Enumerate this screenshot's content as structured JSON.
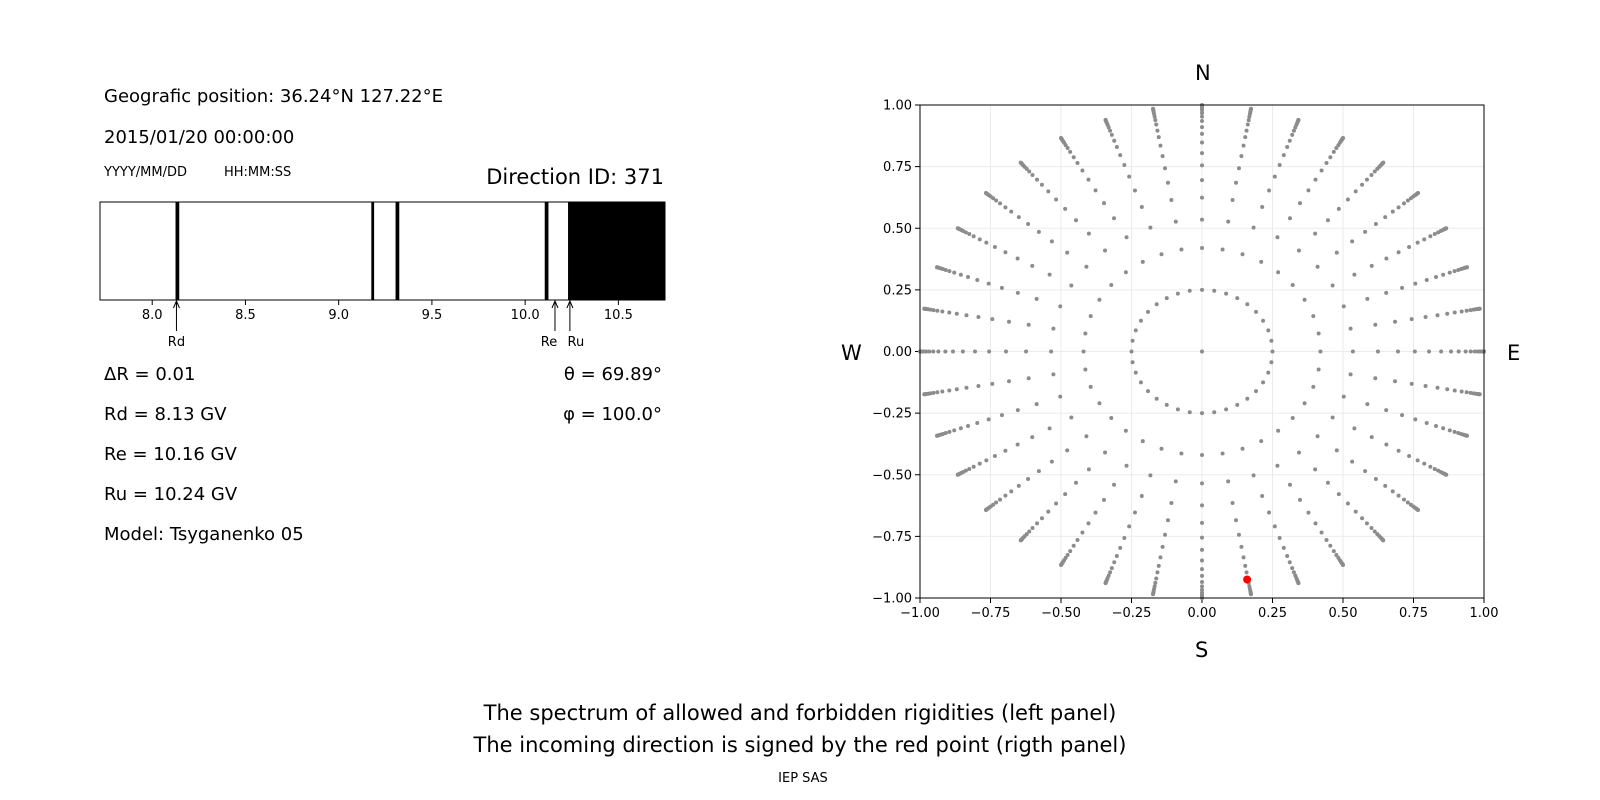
{
  "info": {
    "position": "Geografic position: 36.24°N 127.22°E",
    "datetime": "2015/01/20 00:00:00",
    "date_format": "YYYY/MM/DD",
    "time_format": "HH:MM:SS",
    "direction_id": "Direction ID: 371",
    "delta_r": "ΔR = 0.01",
    "rd": "Rd = 8.13 GV",
    "re": "Re = 10.16 GV",
    "ru": "Ru = 10.24 GV",
    "model": "Model: Tsyganenko 05",
    "theta": "θ = 69.89°",
    "phi": "φ = 100.0°"
  },
  "compass": {
    "n": "N",
    "s": "S",
    "w": "W",
    "e": "E"
  },
  "caption": {
    "line1": "The spectrum of allowed and forbidden rigidities (left panel)",
    "line2": "The incoming direction is signed by the red point (rigth panel)",
    "credit": "IEP SAS"
  },
  "chart_data": [
    {
      "type": "spectrum",
      "xlim": [
        7.72,
        10.75
      ],
      "ticks": [
        8.0,
        8.5,
        9.0,
        9.5,
        10.0,
        10.5
      ],
      "tick_labels": [
        "8.0",
        "8.5",
        "9.0",
        "9.5",
        "10.0",
        "10.5"
      ],
      "forbidden_bands": [
        [
          8.125,
          8.145
        ],
        [
          9.175,
          9.19
        ],
        [
          9.305,
          9.325
        ],
        [
          10.105,
          10.125
        ],
        [
          10.23,
          10.75
        ]
      ],
      "markers": [
        {
          "label": "Rd",
          "value": 8.13
        },
        {
          "label": "Re",
          "value": 10.16
        },
        {
          "label": "Ru",
          "value": 10.24
        }
      ],
      "colors": {
        "forbidden": "#000000",
        "allowed": "#ffffff"
      }
    },
    {
      "type": "scatter",
      "xlim": [
        -1.0,
        1.0
      ],
      "ylim": [
        -1.0,
        1.0
      ],
      "grid": true,
      "xticks": [
        "−1.00",
        "−0.75",
        "−0.50",
        "−0.25",
        "0.00",
        "0.25",
        "0.50",
        "0.75",
        "1.00"
      ],
      "yticks": [
        "−1.00",
        "−0.75",
        "−0.50",
        "−0.25",
        "0.00",
        "0.25",
        "0.50",
        "0.75",
        "1.00"
      ],
      "tick_values": [
        -1.0,
        -0.75,
        -0.5,
        -0.25,
        0.0,
        0.25,
        0.5,
        0.75,
        1.0
      ],
      "center_point": [
        0.0,
        0.0
      ],
      "inner_circle_radius": 0.25,
      "azimuth_step_deg": 10,
      "ray_radii": [
        0.42,
        0.535,
        0.624,
        0.695,
        0.755,
        0.805,
        0.848,
        0.883,
        0.91,
        0.935,
        0.953,
        0.967,
        0.978,
        0.986,
        0.992,
        0.996,
        0.999,
        1.0
      ],
      "highlight_point": {
        "x": 0.16,
        "y": -0.925
      },
      "colors": {
        "points": "#8c8c8c",
        "highlight": "#ff0000",
        "grid": "#ebebeb"
      }
    }
  ]
}
